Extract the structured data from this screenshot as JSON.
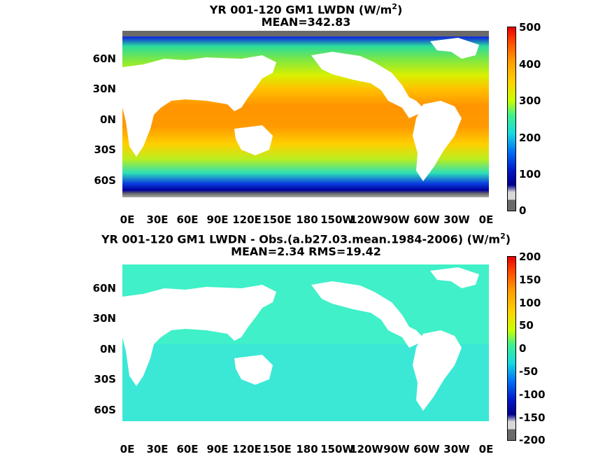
{
  "top": {
    "title_line1": "YR 001-120 GM1 LWDN (W/m",
    "title_sup": "2",
    "title_close": ")",
    "title_line2": "MEAN=342.83",
    "lat_labels": [
      "60N",
      "30N",
      "0N",
      "30S",
      "60S"
    ],
    "lon_labels": [
      "0E",
      "30E",
      "60E",
      "90E",
      "120E",
      "150E",
      "180",
      "150W",
      "120W",
      "90W",
      "60W",
      "30W",
      "0E"
    ],
    "colorbar_ticks": [
      "500",
      "400",
      "300",
      "200",
      "100",
      "0"
    ],
    "colors": [
      "#ff9a00",
      "#ffd200",
      "#2de0b8",
      "#0018c8",
      "#6a6a6a"
    ]
  },
  "bottom": {
    "title_line1": "YR 001-120 GM1 LWDN - Obs.(a.b27.03.mean.1984-2006) (W/m",
    "title_sup": "2",
    "title_close": ")",
    "title_line2": "MEAN=2.34 RMS=19.42",
    "lat_labels": [
      "60N",
      "30N",
      "0N",
      "30S",
      "60S"
    ],
    "lon_labels": [
      "0E",
      "30E",
      "60E",
      "90E",
      "120E",
      "150E",
      "180",
      "150W",
      "120W",
      "90W",
      "60W",
      "30W",
      "0E"
    ],
    "colorbar_ticks": [
      "200",
      "150",
      "100",
      "50",
      "0",
      "-50",
      "-100",
      "-150",
      "-200"
    ],
    "colors": [
      "#3ff0c8",
      "#39e3e0",
      "#0018c8",
      "#6a6a6a"
    ]
  }
}
